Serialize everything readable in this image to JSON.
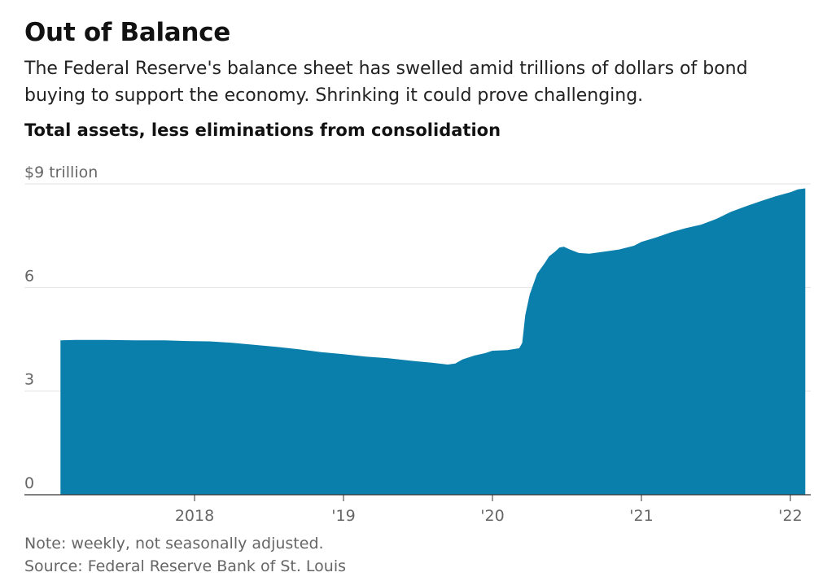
{
  "header": {
    "title": "Out of Balance",
    "subtitle": "The Federal Reserve's balance sheet has swelled amid trillions of dollars of bond buying to support the economy. Shrinking it could prove challenging.",
    "chart_heading": "Total assets, less eliminations from consolidation"
  },
  "footer": {
    "note": "Note: weekly, not seasonally adjusted.",
    "source": "Source: Federal Reserve Bank of St. Louis"
  },
  "colors": {
    "area_fill": "#0a7fab",
    "gridline": "#e3e3e3",
    "axis": "#333333",
    "tick_text": "#666666"
  },
  "chart_data": {
    "type": "area",
    "title": "Total assets, less eliminations from consolidation",
    "unit": "trillion dollars",
    "ylim": [
      0,
      9
    ],
    "xlim": [
      2017.1,
      2022.1
    ],
    "grid": true,
    "y_ticks": [
      {
        "value": 9,
        "label": "$9 trillion"
      },
      {
        "value": 6,
        "label": "6"
      },
      {
        "value": 3,
        "label": "3"
      },
      {
        "value": 0,
        "label": "0"
      }
    ],
    "x_ticks": [
      {
        "value": 2018,
        "label": "2018"
      },
      {
        "value": 2019,
        "label": "'19"
      },
      {
        "value": 2020,
        "label": "'20"
      },
      {
        "value": 2021,
        "label": "'21"
      },
      {
        "value": 2022,
        "label": "'22"
      }
    ],
    "series": [
      {
        "points": [
          [
            2017.1,
            4.47
          ],
          [
            2017.2,
            4.48
          ],
          [
            2017.4,
            4.48
          ],
          [
            2017.6,
            4.47
          ],
          [
            2017.8,
            4.47
          ],
          [
            2017.95,
            4.45
          ],
          [
            2018.1,
            4.44
          ],
          [
            2018.25,
            4.4
          ],
          [
            2018.4,
            4.34
          ],
          [
            2018.55,
            4.28
          ],
          [
            2018.7,
            4.21
          ],
          [
            2018.85,
            4.13
          ],
          [
            2019.0,
            4.07
          ],
          [
            2019.15,
            4.0
          ],
          [
            2019.3,
            3.95
          ],
          [
            2019.45,
            3.88
          ],
          [
            2019.6,
            3.82
          ],
          [
            2019.7,
            3.77
          ],
          [
            2019.75,
            3.8
          ],
          [
            2019.8,
            3.92
          ],
          [
            2019.88,
            4.03
          ],
          [
            2019.95,
            4.1
          ],
          [
            2020.0,
            4.17
          ],
          [
            2020.1,
            4.19
          ],
          [
            2020.18,
            4.24
          ],
          [
            2020.2,
            4.4
          ],
          [
            2020.22,
            5.2
          ],
          [
            2020.25,
            5.8
          ],
          [
            2020.3,
            6.4
          ],
          [
            2020.35,
            6.7
          ],
          [
            2020.38,
            6.9
          ],
          [
            2020.42,
            7.04
          ],
          [
            2020.45,
            7.16
          ],
          [
            2020.48,
            7.18
          ],
          [
            2020.52,
            7.1
          ],
          [
            2020.55,
            7.05
          ],
          [
            2020.58,
            7.0
          ],
          [
            2020.65,
            6.98
          ],
          [
            2020.75,
            7.04
          ],
          [
            2020.85,
            7.1
          ],
          [
            2020.95,
            7.21
          ],
          [
            2021.0,
            7.32
          ],
          [
            2021.1,
            7.45
          ],
          [
            2021.2,
            7.6
          ],
          [
            2021.3,
            7.72
          ],
          [
            2021.4,
            7.82
          ],
          [
            2021.5,
            7.98
          ],
          [
            2021.6,
            8.19
          ],
          [
            2021.7,
            8.35
          ],
          [
            2021.8,
            8.5
          ],
          [
            2021.9,
            8.64
          ],
          [
            2022.0,
            8.76
          ],
          [
            2022.05,
            8.84
          ],
          [
            2022.1,
            8.87
          ]
        ]
      }
    ]
  }
}
